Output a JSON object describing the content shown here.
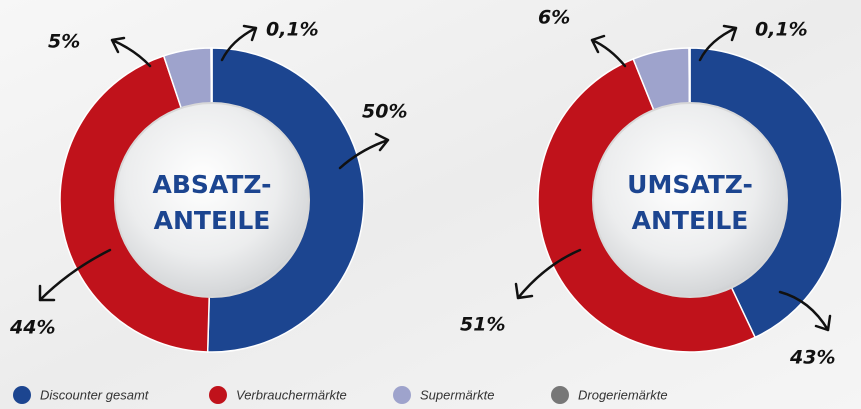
{
  "chart_data": [
    {
      "type": "pie",
      "center_label": [
        "ABSATZ-",
        "ANTEILE"
      ],
      "values": [
        50,
        44,
        5,
        0.1
      ],
      "value_labels": [
        "50%",
        "44%",
        "5%",
        "0,1%"
      ]
    },
    {
      "type": "pie",
      "center_label": [
        "UMSATZ-",
        "ANTEILE"
      ],
      "values": [
        43,
        51,
        6,
        0.1
      ],
      "value_labels": [
        "43%",
        "51%",
        "6%",
        "0,1%"
      ]
    }
  ],
  "legend": {
    "labels": [
      "Discounter gesamt",
      "Verbrauchermärkte",
      "Supermärkte",
      "Drogeriemärkte"
    ],
    "colors": [
      "#1c4590",
      "#c0121b",
      "#9ea3cc",
      "#777777"
    ]
  }
}
